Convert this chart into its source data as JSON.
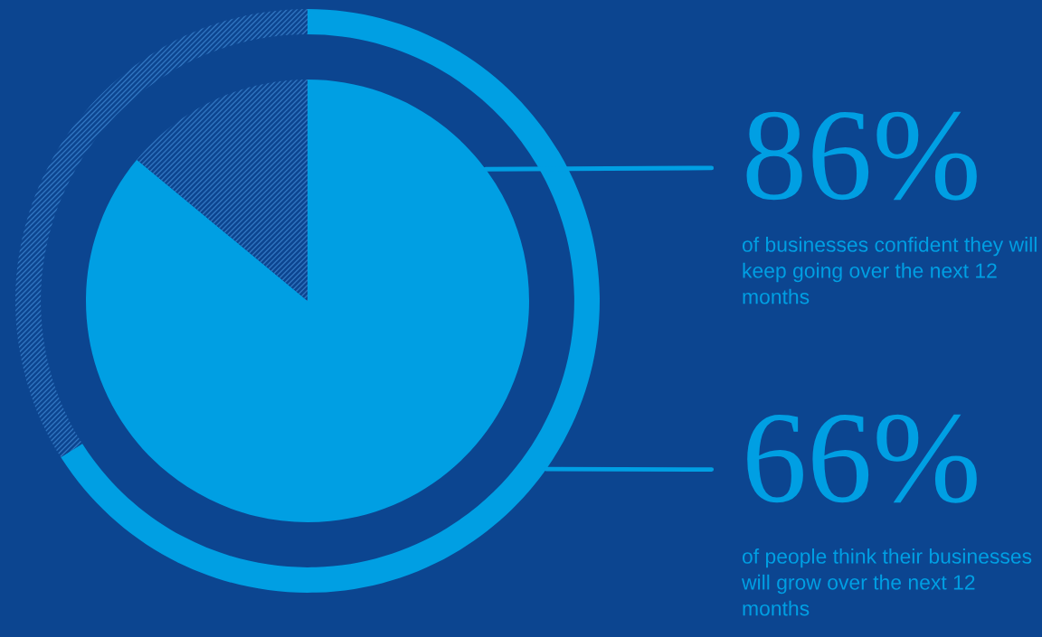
{
  "chart_data": {
    "type": "donut",
    "categories": [
      null,
      null
    ],
    "series": [
      {
        "type": "pie",
        "values": [
          86,
          14
        ],
        "colors": [
          "#009fe3",
          "#0c4590"
        ],
        "value_labels": [
          "86%",
          null
        ]
      },
      {
        "values": [
          66,
          34
        ],
        "colors": [
          "#009fe3",
          "#0c4590"
        ],
        "value_labels": [
          "66%",
          null
        ]
      }
    ],
    "annotations": [
      "of businesses confident they will keep going over the next 12 months",
      "of people think their businesses will grow over the next 12 months"
    ]
  }
}
